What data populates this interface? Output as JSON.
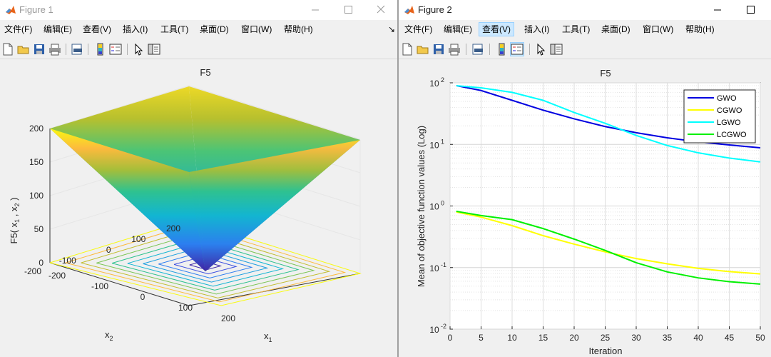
{
  "figure1": {
    "title": "Figure 1",
    "menu": [
      "文件(F)",
      "编辑(E)",
      "查看(V)",
      "插入(I)",
      "工具(T)",
      "桌面(D)",
      "窗口(W)",
      "帮助(H)"
    ],
    "menu_overflow": "↘",
    "toolbar_icons": [
      "new-figure-icon",
      "open-file-icon",
      "save-icon",
      "print-icon",
      "print-preview-icon",
      "colorbar-icon",
      "legend-icon",
      "pointer-icon",
      "property-editor-icon"
    ]
  },
  "figure2": {
    "title": "Figure 2",
    "menu": [
      "文件(F)",
      "编辑(E)",
      "查看(V)",
      "插入(I)",
      "工具(T)",
      "桌面(D)",
      "窗口(W)",
      "帮助(H)"
    ],
    "highlighted_menu": "查看(V)",
    "toolbar_icons": [
      "new-figure-icon",
      "open-file-icon",
      "save-icon",
      "print-icon",
      "print-preview-icon",
      "colorbar-icon",
      "legend-icon",
      "pointer-icon",
      "property-editor-icon"
    ]
  },
  "chart_data": [
    {
      "type": "surface",
      "title": "F5",
      "xlabel": "x1",
      "ylabel": "x2",
      "zlabel": "F5( x1 , x2 )",
      "function": "max(|x1|, |x2|)",
      "xlim": [
        -200,
        200
      ],
      "ylim": [
        -200,
        200
      ],
      "zlim": [
        0,
        200
      ],
      "x_ticks": [
        "-200",
        "-100",
        "0",
        "100",
        "200"
      ],
      "y_ticks": [
        "-200",
        "-100",
        "0",
        "100",
        "200"
      ],
      "z_ticks": [
        "0",
        "50",
        "100",
        "150",
        "200"
      ],
      "contour_levels": [
        20,
        40,
        60,
        80,
        100,
        120,
        140,
        160,
        180,
        200
      ],
      "colormap": "parula",
      "grid": true
    },
    {
      "type": "line",
      "title": "F5",
      "xlabel": "Iteration",
      "ylabel": "Mean of objective function values (Log)",
      "yscale": "log",
      "xlim": [
        0,
        50
      ],
      "ylim": [
        0.01,
        100
      ],
      "x_ticks": [
        "0",
        "5",
        "10",
        "15",
        "20",
        "25",
        "30",
        "35",
        "40",
        "45",
        "50"
      ],
      "y_ticks": [
        [
          "10",
          "2"
        ],
        [
          "10",
          "1"
        ],
        [
          "10",
          "0"
        ],
        [
          "10",
          "-1"
        ],
        [
          "10",
          "-2"
        ]
      ],
      "legend_position": "top-right",
      "grid": true,
      "x": [
        1,
        5,
        10,
        15,
        20,
        25,
        30,
        35,
        40,
        45,
        50
      ],
      "series": [
        {
          "name": "GWO",
          "color": "#0000e0",
          "values": [
            90,
            75,
            52,
            36,
            26,
            19.5,
            15.5,
            12.8,
            11,
            9.8,
            8.8
          ]
        },
        {
          "name": "CGWO",
          "color": "#ffff00",
          "values": [
            0.8,
            0.66,
            0.48,
            0.33,
            0.24,
            0.18,
            0.14,
            0.115,
            0.097,
            0.086,
            0.079
          ]
        },
        {
          "name": "LGWO",
          "color": "#00ffff",
          "values": [
            90,
            83,
            70,
            52,
            33,
            22,
            14,
            9.6,
            7.3,
            6,
            5.2
          ]
        },
        {
          "name": "LCGWO",
          "color": "#00f000",
          "values": [
            0.82,
            0.7,
            0.6,
            0.43,
            0.29,
            0.19,
            0.12,
            0.085,
            0.068,
            0.059,
            0.054
          ]
        }
      ]
    }
  ]
}
